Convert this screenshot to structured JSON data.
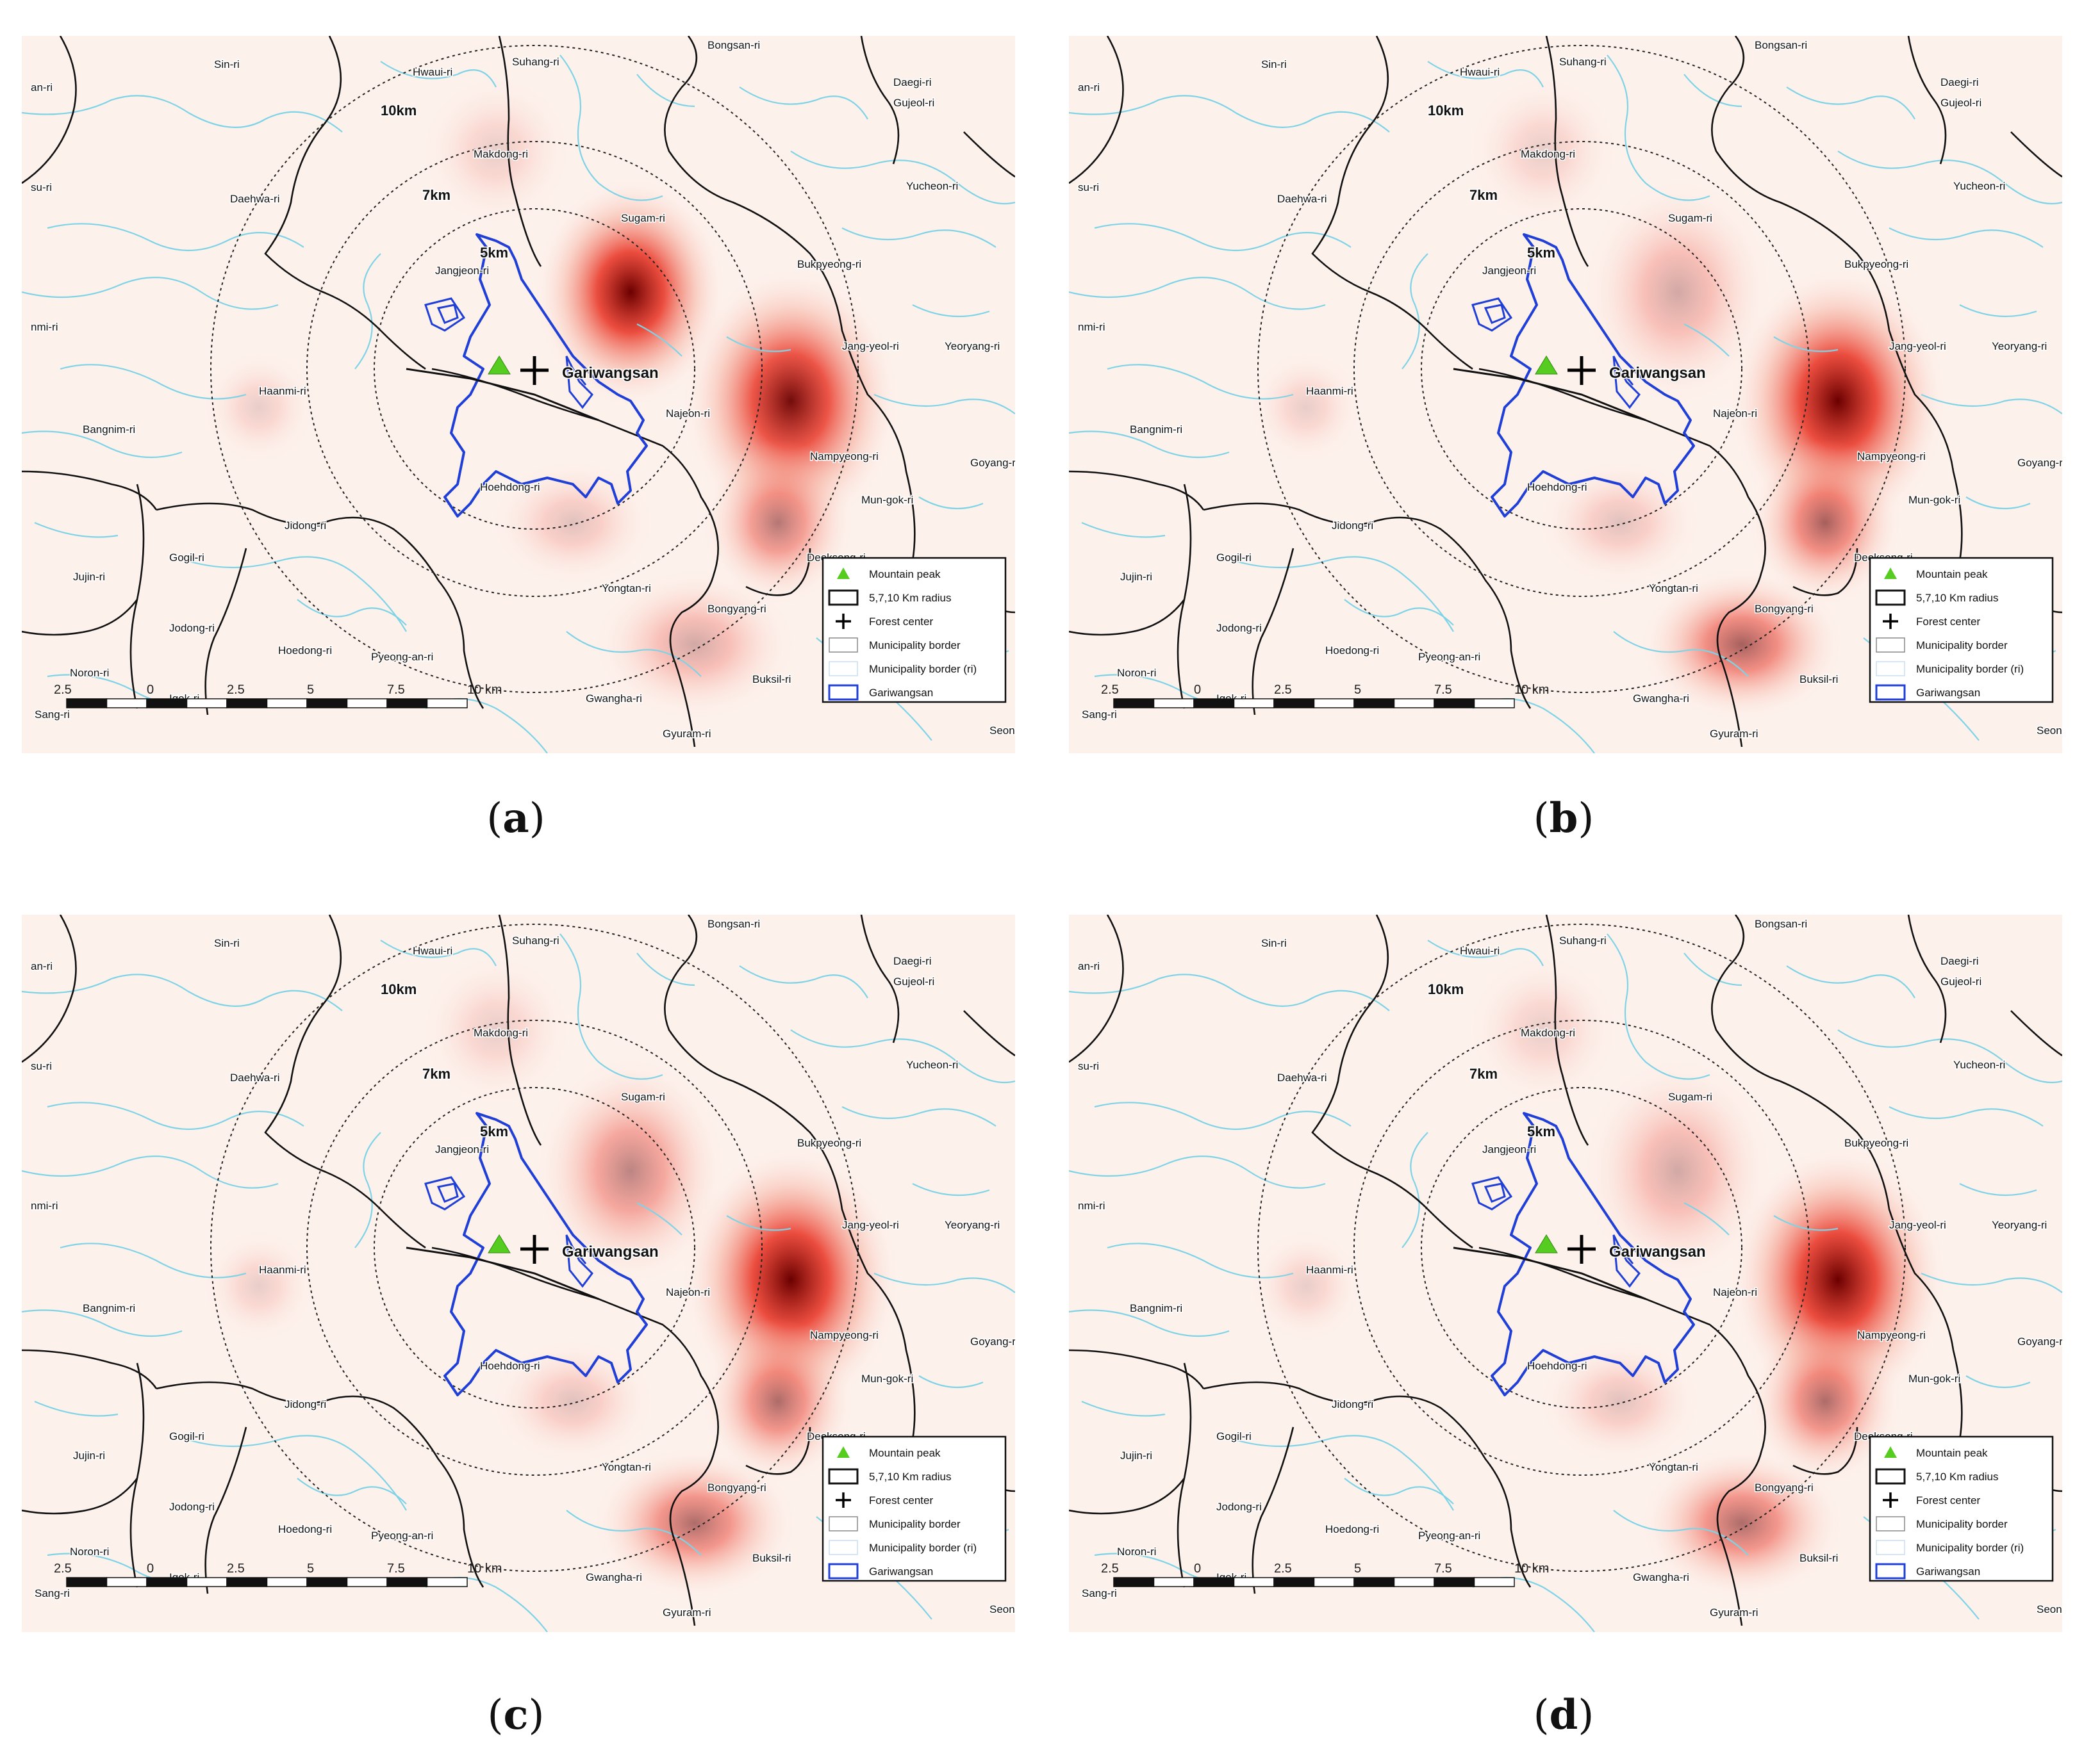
{
  "panels": [
    {
      "id": "a",
      "caption_letter": "a",
      "hotspots": [
        {
          "place": "Sugam-ri",
          "intensity": 1.0
        },
        {
          "place": "Nampyeong-ri",
          "intensity": 0.95
        },
        {
          "place": "Deoksong-ri",
          "intensity": 0.5
        },
        {
          "place": "Bongyang-ri",
          "intensity": 0.3
        },
        {
          "place": "Yongtan-ri",
          "intensity": 0.2
        },
        {
          "place": "Makdong-ri",
          "intensity": 0.15
        },
        {
          "place": "Haanmi-ri",
          "intensity": 0.1
        }
      ]
    },
    {
      "id": "b",
      "caption_letter": "b",
      "hotspots": [
        {
          "place": "Nampyeong-ri",
          "intensity": 1.0
        },
        {
          "place": "Deoksong-ri",
          "intensity": 0.6
        },
        {
          "place": "Bongyang-ri",
          "intensity": 0.6
        },
        {
          "place": "Sugam-ri",
          "intensity": 0.3
        },
        {
          "place": "Yongtan-ri",
          "intensity": 0.2
        },
        {
          "place": "Makdong-ri",
          "intensity": 0.15
        },
        {
          "place": "Haanmi-ri",
          "intensity": 0.1
        }
      ]
    },
    {
      "id": "c",
      "caption_letter": "c",
      "hotspots": [
        {
          "place": "Nampyeong-ri",
          "intensity": 1.0
        },
        {
          "place": "Sugam-ri",
          "intensity": 0.45
        },
        {
          "place": "Deoksong-ri",
          "intensity": 0.55
        },
        {
          "place": "Bongyang-ri",
          "intensity": 0.55
        },
        {
          "place": "Yongtan-ri",
          "intensity": 0.2
        },
        {
          "place": "Makdong-ri",
          "intensity": 0.15
        },
        {
          "place": "Haanmi-ri",
          "intensity": 0.1
        }
      ]
    },
    {
      "id": "d",
      "caption_letter": "d",
      "hotspots": [
        {
          "place": "Nampyeong-ri",
          "intensity": 1.0
        },
        {
          "place": "Deoksong-ri",
          "intensity": 0.55
        },
        {
          "place": "Bongyang-ri",
          "intensity": 0.55
        },
        {
          "place": "Sugam-ri",
          "intensity": 0.3
        },
        {
          "place": "Yongtan-ri",
          "intensity": 0.2
        },
        {
          "place": "Makdong-ri",
          "intensity": 0.15
        },
        {
          "place": "Haanmi-ri",
          "intensity": 0.1
        }
      ]
    }
  ],
  "place_labels": [
    "Sin-ri",
    "Hwaui-ri",
    "Suhang-ri",
    "Bongsan-ri",
    "Daegi-ri",
    "Gujeol-ri",
    "an-ri",
    "10km",
    "Makdong-ri",
    "Yucheon-ri",
    "su-ri",
    "Daehwa-ri",
    "7km",
    "Sugam-ri",
    "5km",
    "Jangjeon-ri",
    "Bukpyeong-ri",
    "nmi-ri",
    "Jang-yeol-ri",
    "Yeoryang-ri",
    "Gariwangsan",
    "Haanmi-ri",
    "Najeon-ri",
    "Bangnim-ri",
    "Nampyeong-ri",
    "Goyang-ri",
    "Hoehdong-ri",
    "Mun-gok-ri",
    "Jidong-ri",
    "Gogil-ri",
    "Deoksong-ri",
    "Jujin-ri",
    "Yongtan-ri",
    "Bongyang-ri",
    "Ae",
    "Jodong-ri",
    "Hoedong-ri",
    "Noron-ri",
    "Pyeong-an-ri",
    "Buksil-ri",
    "Igok-ri",
    "Gwangha-ri",
    "Sang-ri",
    "Gyuram-ri",
    "Seong"
  ],
  "legend": {
    "peak": "Mountain peak",
    "radius": "5,7,10 Km radius",
    "center": "Forest center",
    "muni": "Municipality border",
    "muni_ri": "Municipality border (ri)",
    "site": "Gariwangsan"
  },
  "scalebar": {
    "ticks": [
      "2.5",
      "0",
      "2.5",
      "5",
      "7.5",
      "10 km"
    ]
  },
  "colors": {
    "background": "#fdf1ec",
    "river": "#7fd3e6",
    "border": "#111111",
    "boundary": "#1f3fd6",
    "peak": "#55cc1f",
    "heat_core": "#6b0000",
    "heat_mid": "#e83020"
  }
}
